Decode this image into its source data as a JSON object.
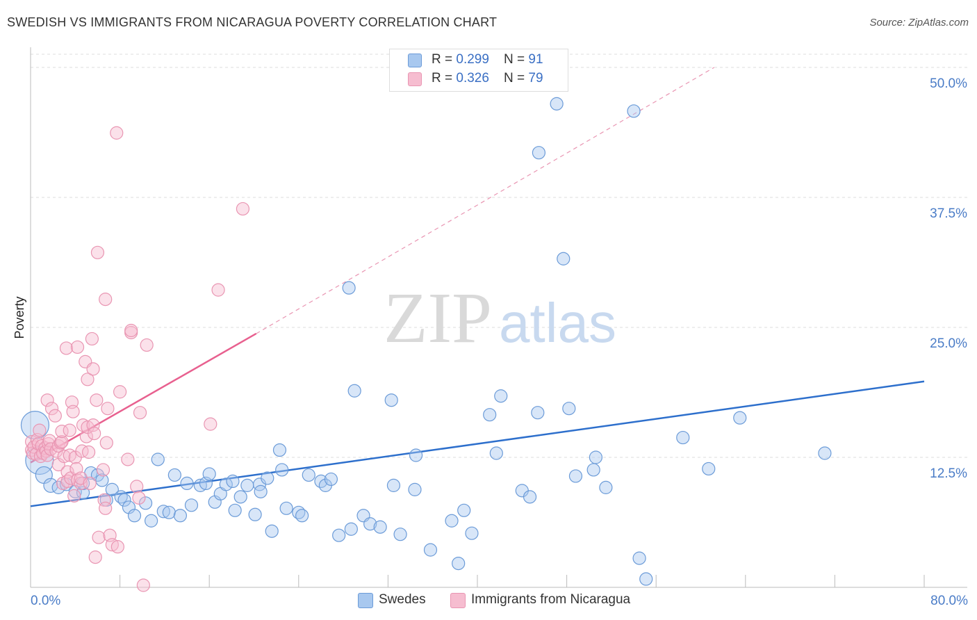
{
  "header": {
    "title": "SWEDISH VS IMMIGRANTS FROM NICARAGUA POVERTY CORRELATION CHART",
    "source": "Source: ZipAtlas.com"
  },
  "watermark": {
    "zip": "ZIP",
    "atlas": "atlas"
  },
  "legend_top": {
    "swedes": {
      "r_label": "R = ",
      "r_value": "0.299",
      "n_label": "N = ",
      "n_value": "91"
    },
    "nicaragua": {
      "r_label": "R = ",
      "r_value": "0.326",
      "n_label": "N = ",
      "n_value": "79"
    }
  },
  "colors": {
    "swedes_fill": "#a8c8ef",
    "swedes_stroke": "#6b9bd8",
    "swedes_line": "#2d6fcc",
    "nicaragua_fill": "#f6bdd0",
    "nicaragua_stroke": "#e995b2",
    "nicaragua_line": "#e8608f",
    "grid": "#dddddd",
    "tick_text": "#4a7cc7"
  },
  "chart_data": {
    "type": "scatter",
    "title": "SWEDISH VS IMMIGRANTS FROM NICARAGUA POVERTY CORRELATION CHART",
    "xlabel": "",
    "ylabel": "Poverty",
    "xlim": [
      0,
      80
    ],
    "ylim": [
      0,
      50
    ],
    "x_tick_labels": [
      "0.0%",
      "80.0%"
    ],
    "y_ticks": [
      12.5,
      25.0,
      37.5,
      50.0
    ],
    "y_tick_labels": [
      "12.5%",
      "25.0%",
      "37.5%",
      "50.0%"
    ],
    "grid": true,
    "legend_position": "top-center",
    "series": [
      {
        "name": "Swedes",
        "R": 0.299,
        "N": 91,
        "trend": {
          "x": [
            0,
            80
          ],
          "y": [
            7.8,
            19.8
          ],
          "dashed_extension": false
        },
        "points": [
          [
            0.4,
            15.6,
            20
          ],
          [
            0.8,
            12.2,
            20
          ],
          [
            1.2,
            10.8,
            12
          ],
          [
            1.8,
            9.8,
            10
          ],
          [
            2.5,
            9.6,
            9
          ],
          [
            3.2,
            9.9,
            9
          ],
          [
            4.0,
            9.2,
            9
          ],
          [
            4.7,
            9.1,
            9
          ],
          [
            4.7,
            10.0,
            9
          ],
          [
            5.4,
            11.0,
            9
          ],
          [
            6.0,
            10.8,
            9
          ],
          [
            6.4,
            10.3,
            9
          ],
          [
            6.8,
            8.4,
            9
          ],
          [
            7.3,
            9.4,
            9
          ],
          [
            8.1,
            8.7,
            9
          ],
          [
            8.4,
            8.4,
            9
          ],
          [
            8.8,
            7.7,
            9
          ],
          [
            9.3,
            6.9,
            9
          ],
          [
            10.3,
            8.1,
            9
          ],
          [
            10.8,
            6.4,
            9
          ],
          [
            11.4,
            12.3,
            9
          ],
          [
            11.9,
            7.3,
            9
          ],
          [
            12.4,
            7.2,
            9
          ],
          [
            12.9,
            10.8,
            9
          ],
          [
            13.4,
            6.9,
            9
          ],
          [
            14.0,
            10.0,
            9
          ],
          [
            14.4,
            7.9,
            9
          ],
          [
            15.2,
            9.8,
            9
          ],
          [
            15.7,
            10.0,
            9
          ],
          [
            16.0,
            10.9,
            9
          ],
          [
            16.5,
            8.2,
            9
          ],
          [
            17.0,
            9.0,
            9
          ],
          [
            17.5,
            9.9,
            9
          ],
          [
            18.1,
            10.2,
            9
          ],
          [
            18.3,
            7.4,
            9
          ],
          [
            18.8,
            8.7,
            9
          ],
          [
            19.4,
            9.8,
            9
          ],
          [
            20.1,
            7.0,
            9
          ],
          [
            20.5,
            9.9,
            9
          ],
          [
            20.6,
            9.2,
            9
          ],
          [
            21.2,
            10.5,
            9
          ],
          [
            21.6,
            5.4,
            9
          ],
          [
            22.3,
            13.2,
            9
          ],
          [
            22.5,
            11.3,
            9
          ],
          [
            22.9,
            7.6,
            9
          ],
          [
            24.0,
            7.2,
            9
          ],
          [
            24.3,
            6.9,
            9
          ],
          [
            24.9,
            10.8,
            9
          ],
          [
            26.0,
            10.2,
            9
          ],
          [
            26.4,
            9.8,
            9
          ],
          [
            26.9,
            10.4,
            9
          ],
          [
            27.6,
            5.0,
            9
          ],
          [
            28.5,
            28.8,
            9
          ],
          [
            28.7,
            5.6,
            9
          ],
          [
            29.0,
            18.9,
            9
          ],
          [
            29.8,
            6.9,
            9
          ],
          [
            30.4,
            6.1,
            9
          ],
          [
            31.3,
            5.8,
            9
          ],
          [
            32.3,
            18.0,
            9
          ],
          [
            32.5,
            9.8,
            9
          ],
          [
            33.1,
            5.1,
            9
          ],
          [
            34.4,
            9.4,
            9
          ],
          [
            34.5,
            12.7,
            9
          ],
          [
            35.8,
            3.6,
            9
          ],
          [
            37.7,
            6.4,
            9
          ],
          [
            38.3,
            2.3,
            9
          ],
          [
            38.8,
            7.4,
            9
          ],
          [
            39.5,
            5.2,
            9
          ],
          [
            41.1,
            16.6,
            9
          ],
          [
            41.7,
            12.9,
            9
          ],
          [
            42.1,
            18.4,
            9
          ],
          [
            44.0,
            9.3,
            9
          ],
          [
            44.7,
            8.7,
            9
          ],
          [
            45.4,
            16.8,
            9
          ],
          [
            45.5,
            41.8,
            9
          ],
          [
            47.1,
            46.5,
            9
          ],
          [
            47.7,
            31.6,
            9
          ],
          [
            48.2,
            17.2,
            9
          ],
          [
            48.8,
            10.7,
            9
          ],
          [
            50.4,
            11.3,
            9
          ],
          [
            50.6,
            12.5,
            9
          ],
          [
            51.5,
            9.6,
            9
          ],
          [
            54.0,
            45.8,
            9
          ],
          [
            54.5,
            2.8,
            9
          ],
          [
            55.1,
            0.8,
            9
          ],
          [
            58.4,
            14.4,
            9
          ],
          [
            60.7,
            11.4,
            9
          ],
          [
            63.5,
            16.3,
            9
          ],
          [
            71.1,
            12.9,
            9
          ]
        ]
      },
      {
        "name": "Immigrants from Nicaragua",
        "R": 0.326,
        "N": 79,
        "trend": {
          "x": [
            0,
            20.2
          ],
          "y": [
            12.0,
            24.4
          ],
          "dashed_extension": {
            "x": [
              20.2,
              61.2
            ],
            "y": [
              24.4,
              50.0
            ]
          }
        },
        "points": [
          [
            0.1,
            13.2,
            9
          ],
          [
            0.1,
            14.0,
            9
          ],
          [
            0.2,
            12.9,
            9
          ],
          [
            0.3,
            13.5,
            9
          ],
          [
            0.5,
            12.8,
            9
          ],
          [
            0.6,
            14.2,
            9
          ],
          [
            0.7,
            13.8,
            9
          ],
          [
            0.8,
            15.1,
            9
          ],
          [
            0.9,
            12.6,
            9
          ],
          [
            1.0,
            13.6,
            9
          ],
          [
            1.1,
            12.9,
            9
          ],
          [
            1.3,
            13.4,
            9
          ],
          [
            1.4,
            13.1,
            9
          ],
          [
            1.5,
            12.7,
            9
          ],
          [
            1.6,
            13.8,
            9
          ],
          [
            1.7,
            14.1,
            9
          ],
          [
            1.8,
            13.3,
            9
          ],
          [
            1.5,
            18.0,
            9
          ],
          [
            1.9,
            17.2,
            9
          ],
          [
            2.2,
            16.5,
            9
          ],
          [
            2.3,
            13.1,
            9
          ],
          [
            2.5,
            13.6,
            9
          ],
          [
            2.5,
            11.8,
            9
          ],
          [
            2.7,
            13.9,
            9
          ],
          [
            2.8,
            14.0,
            9
          ],
          [
            2.8,
            15.0,
            9
          ],
          [
            2.9,
            10.0,
            9
          ],
          [
            3.0,
            12.6,
            9
          ],
          [
            3.2,
            23.0,
            9
          ],
          [
            3.3,
            11.1,
            9
          ],
          [
            3.3,
            10.2,
            9
          ],
          [
            3.5,
            15.1,
            9
          ],
          [
            3.5,
            12.7,
            9
          ],
          [
            3.6,
            10.5,
            9
          ],
          [
            3.7,
            17.8,
            9
          ],
          [
            3.8,
            16.9,
            9
          ],
          [
            3.9,
            8.8,
            9
          ],
          [
            4.0,
            12.5,
            9
          ],
          [
            4.1,
            11.4,
            9
          ],
          [
            4.2,
            10.3,
            9
          ],
          [
            4.2,
            23.1,
            9
          ],
          [
            4.5,
            10.0,
            9
          ],
          [
            4.5,
            10.5,
            9
          ],
          [
            4.6,
            13.1,
            9
          ],
          [
            4.7,
            15.6,
            9
          ],
          [
            4.9,
            21.7,
            9
          ],
          [
            5.0,
            14.5,
            9
          ],
          [
            5.1,
            20.0,
            9
          ],
          [
            5.1,
            15.4,
            9
          ],
          [
            5.2,
            13.0,
            9
          ],
          [
            5.3,
            10.0,
            9
          ],
          [
            5.5,
            23.9,
            9
          ],
          [
            5.6,
            21.0,
            9
          ],
          [
            5.6,
            15.6,
            9
          ],
          [
            5.7,
            14.8,
            9
          ],
          [
            5.8,
            2.9,
            9
          ],
          [
            5.9,
            18.0,
            9
          ],
          [
            6.0,
            32.2,
            9
          ],
          [
            6.1,
            4.8,
            9
          ],
          [
            6.5,
            11.3,
            9
          ],
          [
            6.6,
            8.4,
            9
          ],
          [
            6.7,
            7.6,
            9
          ],
          [
            6.7,
            27.7,
            9
          ],
          [
            6.8,
            13.9,
            9
          ],
          [
            6.9,
            17.2,
            9
          ],
          [
            7.1,
            5.0,
            9
          ],
          [
            7.3,
            4.1,
            9
          ],
          [
            7.7,
            43.7,
            9
          ],
          [
            7.8,
            3.9,
            9
          ],
          [
            8.0,
            18.8,
            9
          ],
          [
            8.7,
            12.3,
            9
          ],
          [
            9.0,
            24.5,
            9
          ],
          [
            9.0,
            24.7,
            9
          ],
          [
            9.5,
            9.7,
            9
          ],
          [
            9.7,
            8.6,
            9
          ],
          [
            9.8,
            16.8,
            9
          ],
          [
            10.1,
            0.2,
            9
          ],
          [
            10.4,
            23.3,
            9
          ],
          [
            16.1,
            15.7,
            9
          ],
          [
            16.8,
            28.6,
            9
          ],
          [
            19.0,
            36.4,
            9
          ]
        ]
      }
    ]
  },
  "legend_bottom": {
    "swedes": "Swedes",
    "nicaragua": "Immigrants from Nicaragua"
  }
}
